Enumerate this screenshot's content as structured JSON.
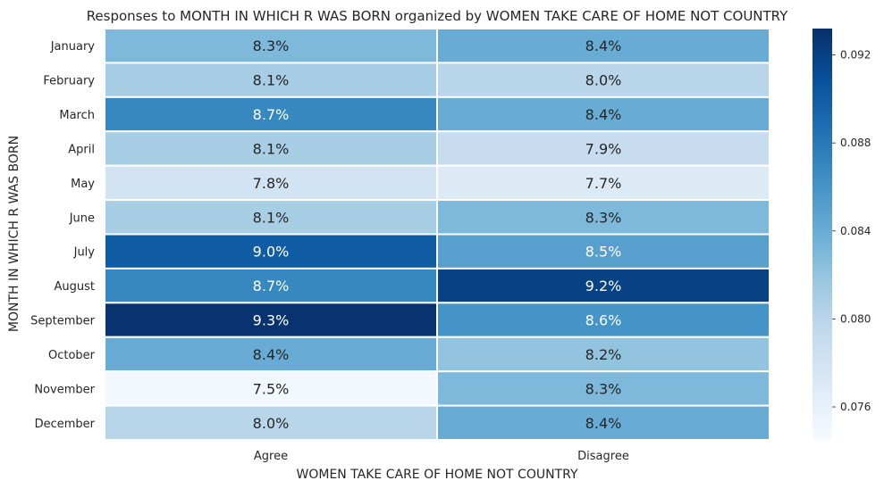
{
  "chart_data": {
    "type": "heatmap",
    "title": "Responses to MONTH IN WHICH R WAS BORN organized by WOMEN TAKE CARE OF HOME NOT COUNTRY",
    "xlabel": "WOMEN TAKE CARE OF HOME NOT COUNTRY",
    "ylabel": "MONTH IN WHICH R WAS BORN",
    "columns": [
      "Agree",
      "Disagree"
    ],
    "rows": [
      "January",
      "February",
      "March",
      "April",
      "May",
      "June",
      "July",
      "August",
      "September",
      "October",
      "November",
      "December"
    ],
    "values": [
      [
        0.083,
        0.084
      ],
      [
        0.081,
        0.08
      ],
      [
        0.087,
        0.084
      ],
      [
        0.081,
        0.079
      ],
      [
        0.078,
        0.077
      ],
      [
        0.081,
        0.083
      ],
      [
        0.09,
        0.085
      ],
      [
        0.087,
        0.092
      ],
      [
        0.093,
        0.086
      ],
      [
        0.084,
        0.082
      ],
      [
        0.075,
        0.083
      ],
      [
        0.08,
        0.084
      ]
    ],
    "cell_labels": [
      [
        "8.3%",
        "8.4%"
      ],
      [
        "8.1%",
        "8.0%"
      ],
      [
        "8.7%",
        "8.4%"
      ],
      [
        "8.1%",
        "7.9%"
      ],
      [
        "7.8%",
        "7.7%"
      ],
      [
        "8.1%",
        "8.3%"
      ],
      [
        "9.0%",
        "8.5%"
      ],
      [
        "8.7%",
        "9.2%"
      ],
      [
        "9.3%",
        "8.6%"
      ],
      [
        "8.4%",
        "8.2%"
      ],
      [
        "7.5%",
        "8.3%"
      ],
      [
        "8.0%",
        "8.4%"
      ]
    ],
    "colorbar": {
      "colormap": "Blues",
      "range": [
        0.0745,
        0.0932
      ],
      "ticks": [
        "0.076",
        "0.080",
        "0.084",
        "0.088",
        "0.092"
      ],
      "tick_values": [
        0.076,
        0.08,
        0.084,
        0.088,
        0.092
      ]
    }
  }
}
